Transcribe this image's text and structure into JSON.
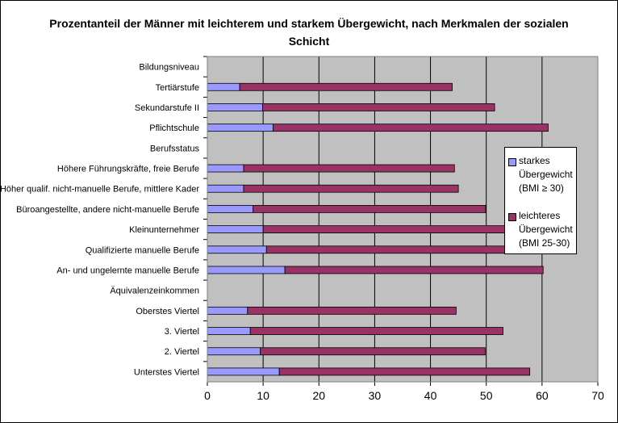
{
  "chart_data": {
    "type": "bar",
    "orientation": "horizontal",
    "stacked": true,
    "title": "Prozentanteil der Männer mit leichterem und starkem Übergewicht, nach Merkmalen der sozialen Schicht",
    "categories": [
      "Bildungsniveau",
      "Tertiärstufe",
      "Sekundarstufe II",
      "Pflichtschule",
      "Berufsstatus",
      "Höhere Führungskräfte, freie Berufe",
      "Höher qualif. nicht-manuelle Berufe, mittlere Kader",
      "Büroangestellte, andere nicht-manuelle Berufe",
      "Kleinunternehmer",
      "Qualifizierte manuelle Berufe",
      "An- und ungelernte manuelle Berufe",
      "Äquivalenzeinkommen",
      "Oberstes Viertel",
      "3. Viertel",
      "2. Viertel",
      "Unterstes Viertel"
    ],
    "series": [
      {
        "name": "starkes Übergewicht (BMI ≥ 30)",
        "color": "#9999ff",
        "values": [
          null,
          5.8,
          9.9,
          11.8,
          null,
          6.5,
          6.5,
          8.2,
          10.0,
          10.6,
          13.9,
          null,
          7.2,
          7.7,
          9.5,
          12.9
        ]
      },
      {
        "name": "leichteres Übergewicht (BMI 25-30)",
        "color": "#993366",
        "values": [
          null,
          38.1,
          41.6,
          49.3,
          null,
          37.8,
          38.5,
          41.7,
          45.0,
          44.4,
          46.3,
          null,
          37.4,
          45.3,
          40.3,
          44.9
        ]
      }
    ],
    "x_ticks": [
      "0",
      "10",
      "20",
      "30",
      "40",
      "50",
      "60",
      "70"
    ],
    "xlim": [
      0,
      70
    ],
    "grid": true,
    "plot_background": "#c0c0c0",
    "legend_position": "right"
  }
}
